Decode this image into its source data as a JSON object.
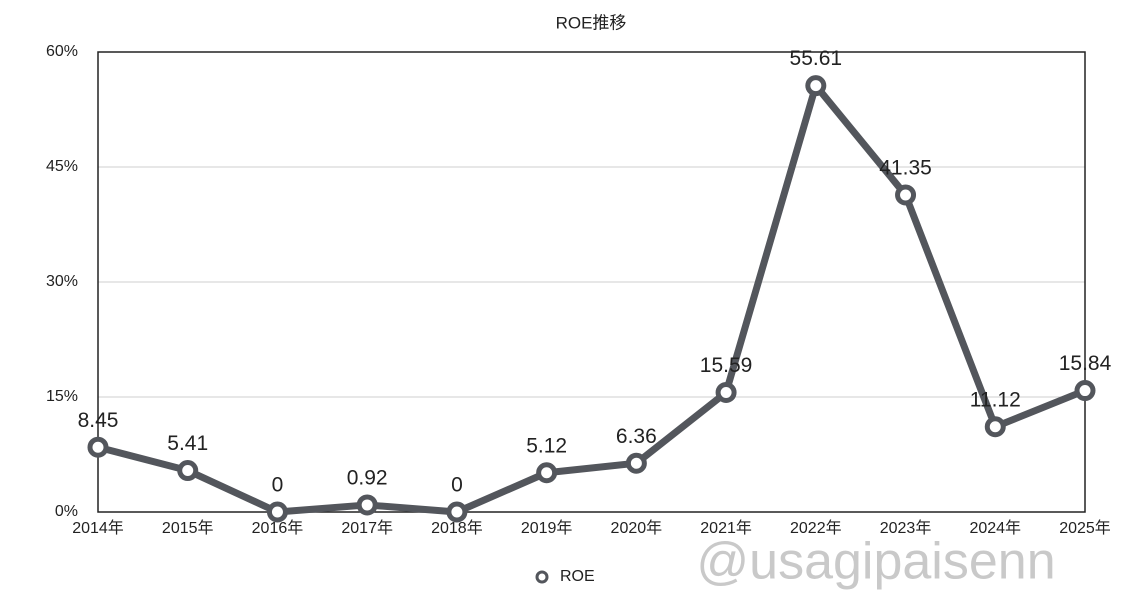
{
  "chart_data": {
    "type": "line",
    "title": "ROE推移",
    "categories": [
      "2014年",
      "2015年",
      "2016年",
      "2017年",
      "2018年",
      "2019年",
      "2020年",
      "2021年",
      "2022年",
      "2023年",
      "2024年",
      "2025年"
    ],
    "series": [
      {
        "name": "ROE",
        "color": "#53565c",
        "values": [
          8.45,
          5.41,
          0,
          0.92,
          0,
          5.12,
          6.36,
          15.59,
          55.61,
          41.35,
          11.12,
          15.84
        ]
      }
    ],
    "ylim": [
      0,
      60
    ],
    "yticks": [
      {
        "value": 0,
        "label": "0%"
      },
      {
        "value": 15,
        "label": "15%"
      },
      {
        "value": 30,
        "label": "30%"
      },
      {
        "value": 45,
        "label": "45%"
      },
      {
        "value": 60,
        "label": "60%"
      }
    ],
    "grid": true,
    "legend": "bottom",
    "watermark": "@usagipaisenn"
  }
}
